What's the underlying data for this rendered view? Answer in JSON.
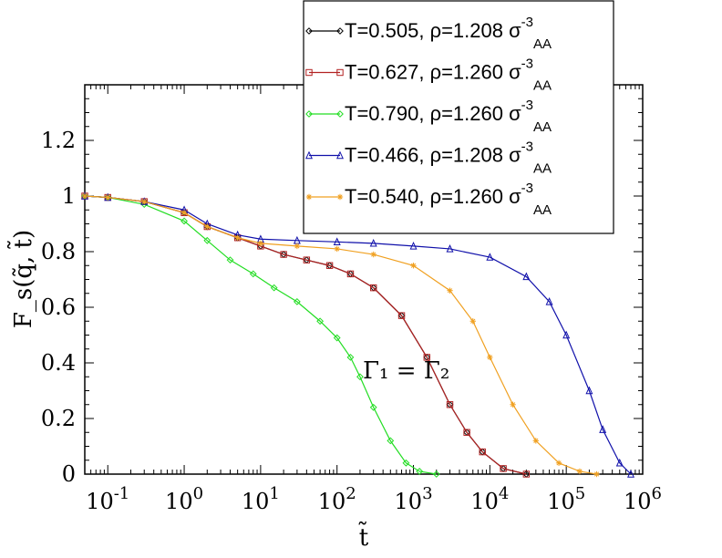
{
  "chart_data": {
    "type": "line",
    "x_scale": "log",
    "xlim": [
      0.05,
      1000000
    ],
    "ylim": [
      0,
      1.4
    ],
    "xlabel": "t̃",
    "ylabel": "F_s(q̃, t̃)",
    "legend_placement": "top-right",
    "grid": false,
    "x_tick_labels": [
      {
        "base": "10",
        "exp": "-1",
        "value": 0.1
      },
      {
        "base": "10",
        "exp": "0",
        "value": 1
      },
      {
        "base": "10",
        "exp": "1",
        "value": 10
      },
      {
        "base": "10",
        "exp": "2",
        "value": 100
      },
      {
        "base": "10",
        "exp": "3",
        "value": 1000
      },
      {
        "base": "10",
        "exp": "4",
        "value": 10000
      },
      {
        "base": "10",
        "exp": "5",
        "value": 100000
      },
      {
        "base": "10",
        "exp": "6",
        "value": 1000000
      }
    ],
    "y_tick_labels": [
      {
        "text": "0",
        "value": 0
      },
      {
        "text": "0.2",
        "value": 0.2
      },
      {
        "text": "0.4",
        "value": 0.4
      },
      {
        "text": "0.6",
        "value": 0.6
      },
      {
        "text": "0.8",
        "value": 0.8
      },
      {
        "text": "1",
        "value": 1.0
      },
      {
        "text": "1.2",
        "value": 1.2
      }
    ],
    "annotation": {
      "text": "Γ₁ = Γ₂",
      "x": 180,
      "y": 0.45
    },
    "series": [
      {
        "legend_main": "T=0.505, ρ=1.208 σ",
        "legend_sup": "-3",
        "legend_sub": "AA",
        "color": "#000000",
        "marker": "diamond",
        "x": [
          0.05,
          0.1,
          0.3,
          1,
          2,
          5,
          10,
          20,
          40,
          80,
          150,
          300,
          700,
          1500,
          3000,
          5000,
          8000,
          15000,
          30000
        ],
        "y": [
          1.0,
          0.995,
          0.98,
          0.94,
          0.89,
          0.85,
          0.82,
          0.79,
          0.77,
          0.75,
          0.72,
          0.67,
          0.57,
          0.42,
          0.25,
          0.15,
          0.08,
          0.02,
          0.0
        ]
      },
      {
        "legend_main": "T=0.627,  ρ=1.260 σ",
        "legend_sup": "-3",
        "legend_sub": "AA",
        "color": "#b22222",
        "marker": "square",
        "x": [
          0.05,
          0.1,
          0.3,
          1,
          2,
          5,
          10,
          20,
          40,
          80,
          150,
          300,
          700,
          1500,
          3000,
          5000,
          8000,
          15000,
          30000
        ],
        "y": [
          1.0,
          0.995,
          0.98,
          0.94,
          0.89,
          0.85,
          0.82,
          0.79,
          0.77,
          0.75,
          0.72,
          0.67,
          0.57,
          0.42,
          0.25,
          0.15,
          0.08,
          0.02,
          0.0
        ]
      },
      {
        "legend_main": "T=0.790,  ρ=1.260 σ",
        "legend_sup": "-3",
        "legend_sub": "AA",
        "color": "#22dd22",
        "marker": "diamond",
        "x": [
          0.05,
          0.1,
          0.3,
          1,
          2,
          4,
          8,
          15,
          30,
          60,
          100,
          150,
          200,
          300,
          500,
          800,
          1200,
          2000
        ],
        "y": [
          1.0,
          0.995,
          0.97,
          0.91,
          0.84,
          0.77,
          0.72,
          0.67,
          0.62,
          0.55,
          0.49,
          0.42,
          0.35,
          0.24,
          0.12,
          0.04,
          0.01,
          0.0
        ]
      },
      {
        "legend_main": "T=0.466,  ρ=1.208 σ",
        "legend_sup": "-3",
        "legend_sub": "AA",
        "color": "#1010aa",
        "marker": "triangle",
        "x": [
          0.05,
          0.1,
          0.3,
          1,
          2,
          5,
          10,
          30,
          100,
          300,
          1000,
          3000,
          10000,
          30000,
          60000,
          100000,
          200000,
          300000,
          500000,
          700000
        ],
        "y": [
          1.0,
          0.995,
          0.98,
          0.95,
          0.9,
          0.86,
          0.845,
          0.84,
          0.835,
          0.83,
          0.82,
          0.81,
          0.78,
          0.71,
          0.62,
          0.5,
          0.3,
          0.16,
          0.04,
          0.0
        ]
      },
      {
        "legend_main": "T=0.540,  ρ=1.260 σ",
        "legend_sup": "-3",
        "legend_sub": "AA",
        "color": "#f0a020",
        "marker": "star",
        "x": [
          0.05,
          0.1,
          0.3,
          1,
          2,
          5,
          10,
          30,
          100,
          300,
          1000,
          3000,
          6000,
          10000,
          20000,
          40000,
          80000,
          150000,
          250000
        ],
        "y": [
          1.0,
          0.995,
          0.98,
          0.94,
          0.89,
          0.85,
          0.83,
          0.82,
          0.81,
          0.79,
          0.75,
          0.66,
          0.55,
          0.42,
          0.25,
          0.12,
          0.04,
          0.01,
          0.0
        ]
      }
    ]
  }
}
